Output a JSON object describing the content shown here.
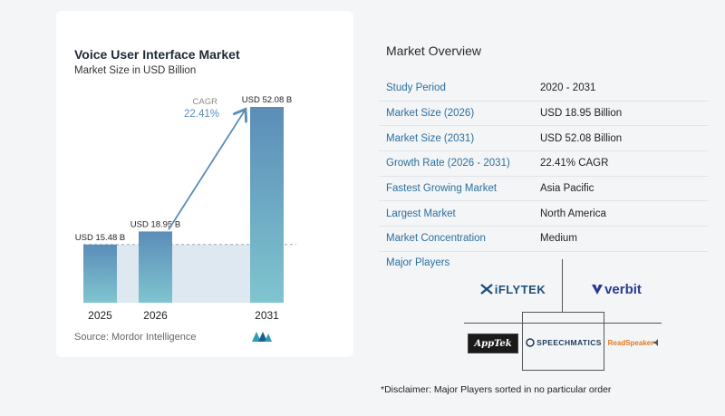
{
  "chart": {
    "title": "Voice User Interface Market",
    "subtitle": "Market Size in USD Billion",
    "source": "Source: Mordor Intelligence",
    "cagr_label": "CAGR",
    "cagr_value": "22.41%"
  },
  "chart_data": {
    "type": "bar",
    "categories": [
      "2025",
      "2026",
      "2031"
    ],
    "values": [
      15.48,
      18.95,
      52.08
    ],
    "data_labels": [
      "USD 15.48 B",
      "USD 18.95 B",
      "USD 52.08 B"
    ],
    "title": "Voice User Interface Market",
    "subtitle": "Market Size in USD Billion",
    "ylim": [
      0,
      52.08
    ],
    "grid": false,
    "colors": {
      "bar_top": "#5b8db8",
      "bar_bottom": "#7fc5cf",
      "arrow": "#5b8db8",
      "band": "#dde8f1"
    }
  },
  "overview": {
    "title": "Market Overview",
    "rows": [
      {
        "label": "Study Period",
        "value": "2020 - 2031"
      },
      {
        "label": "Market Size (2026)",
        "value": "USD 18.95 Billion"
      },
      {
        "label": "Market Size (2031)",
        "value": "USD 52.08 Billion"
      },
      {
        "label": "Growth Rate (2026 - 2031)",
        "value": "22.41% CAGR"
      },
      {
        "label": "Fastest Growing Market",
        "value": "Asia Pacific"
      },
      {
        "label": "Largest Market",
        "value": "North America"
      },
      {
        "label": "Market Concentration",
        "value": "Medium"
      }
    ]
  },
  "players": {
    "title": "Major Players",
    "logos": [
      "iFLYTEK",
      "verbit",
      "AppTek",
      "SPEECHMATICS",
      "ReadSpeaker"
    ]
  },
  "disclaimer": "*Disclaimer: Major Players sorted in no particular order"
}
